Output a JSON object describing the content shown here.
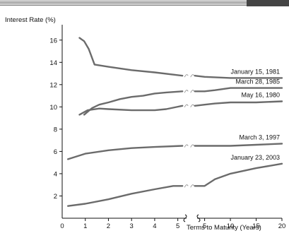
{
  "chart_data": {
    "type": "line",
    "ylabel": "Interest Rate (%)",
    "xlabel": "Terms to Maturity (Years)",
    "ylim": [
      0,
      17
    ],
    "y_ticks": [
      2,
      4,
      6,
      8,
      10,
      12,
      14,
      16
    ],
    "x_segments": [
      {
        "range": [
          0,
          5.5
        ],
        "ticks": [
          0,
          1,
          2,
          3,
          4,
          5
        ]
      },
      {
        "range": [
          3,
          20
        ],
        "ticks": [
          5,
          10,
          15,
          20
        ]
      }
    ],
    "grid": false,
    "series": [
      {
        "name": "January 15, 1981",
        "short": [
          [
            0.75,
            16.2
          ],
          [
            0.95,
            15.9
          ],
          [
            1.15,
            15.2
          ],
          [
            1.4,
            13.8
          ],
          [
            2.0,
            13.6
          ],
          [
            3.0,
            13.3
          ],
          [
            4.0,
            13.1
          ],
          [
            5.2,
            12.8
          ]
        ],
        "long": [
          [
            3.1,
            12.8
          ],
          [
            5,
            12.7
          ],
          [
            10,
            12.6
          ],
          [
            15,
            12.6
          ],
          [
            20,
            12.6
          ]
        ]
      },
      {
        "name": "March 28, 1985",
        "short": [
          [
            0.95,
            9.3
          ],
          [
            1.3,
            9.9
          ],
          [
            1.6,
            10.2
          ],
          [
            2.0,
            10.4
          ],
          [
            2.5,
            10.7
          ],
          [
            3.0,
            10.9
          ],
          [
            3.5,
            11.0
          ],
          [
            4.0,
            11.2
          ],
          [
            4.5,
            11.3
          ],
          [
            5.2,
            11.4
          ]
        ],
        "long": [
          [
            3.1,
            11.4
          ],
          [
            5,
            11.4
          ],
          [
            7,
            11.5
          ],
          [
            10,
            11.7
          ],
          [
            15,
            11.7
          ],
          [
            20,
            11.7
          ]
        ]
      },
      {
        "name": "May 16, 1980",
        "short": [
          [
            0.75,
            9.3
          ],
          [
            1.1,
            9.7
          ],
          [
            1.6,
            9.85
          ],
          [
            2.0,
            9.8
          ],
          [
            3.0,
            9.7
          ],
          [
            4.0,
            9.7
          ],
          [
            4.5,
            9.8
          ],
          [
            5.2,
            10.1
          ]
        ],
        "long": [
          [
            3.1,
            10.1
          ],
          [
            5,
            10.2
          ],
          [
            7,
            10.3
          ],
          [
            10,
            10.4
          ],
          [
            15,
            10.4
          ],
          [
            20,
            10.5
          ]
        ]
      },
      {
        "name": "March 3, 1997",
        "short": [
          [
            0.25,
            5.3
          ],
          [
            1.0,
            5.8
          ],
          [
            2.0,
            6.1
          ],
          [
            3.0,
            6.3
          ],
          [
            4.0,
            6.4
          ],
          [
            5.2,
            6.5
          ]
        ],
        "long": [
          [
            3.1,
            6.5
          ],
          [
            5,
            6.5
          ],
          [
            10,
            6.5
          ],
          [
            15,
            6.6
          ],
          [
            20,
            6.7
          ]
        ]
      },
      {
        "name": "January 23, 2003",
        "short": [
          [
            0.25,
            1.1
          ],
          [
            1.0,
            1.3
          ],
          [
            2.0,
            1.7
          ],
          [
            3.0,
            2.2
          ],
          [
            4.0,
            2.6
          ],
          [
            4.8,
            2.9
          ],
          [
            5.2,
            2.9
          ]
        ],
        "long": [
          [
            3.1,
            2.9
          ],
          [
            5,
            2.9
          ],
          [
            7,
            3.5
          ],
          [
            10,
            4.0
          ],
          [
            15,
            4.5
          ],
          [
            20,
            4.9
          ]
        ]
      }
    ]
  }
}
